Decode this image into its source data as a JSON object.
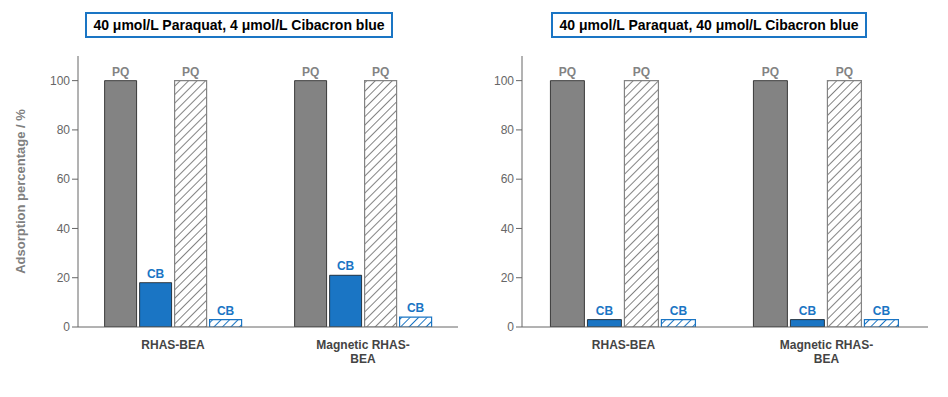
{
  "chart_data": [
    {
      "type": "bar",
      "title": "40 μmol/L Paraquat, 4 μmol/L Cibacron blue",
      "categories": [
        "RHAS-BEA",
        "Magnetic RHAS-\nBEA"
      ],
      "series": [
        {
          "name": "PQ",
          "color": "#838383",
          "values": [
            100,
            100
          ]
        },
        {
          "name": "CB",
          "color": "#1a75c4",
          "values": [
            18,
            21
          ]
        },
        {
          "name": "PQ",
          "color": "#838383",
          "values": [
            100,
            100
          ]
        },
        {
          "name": "CB",
          "color": "#1a75c4",
          "values": [
            3,
            4
          ]
        }
      ],
      "y_label": "Adsorption percentage / %",
      "ylim": [
        0,
        110
      ],
      "yticks": [
        0,
        20,
        40,
        60,
        80,
        100
      ],
      "grid": false
    },
    {
      "type": "bar",
      "title": "40 μmol/L Paraquat, 40 μmol/L Cibacron blue",
      "categories": [
        "RHAS-BEA",
        "Magnetic RHAS-\nBEA"
      ],
      "series": [
        {
          "name": "PQ",
          "color": "#838383",
          "values": [
            100,
            100
          ]
        },
        {
          "name": "CB",
          "color": "#1a75c4",
          "values": [
            3,
            3
          ]
        },
        {
          "name": "PQ",
          "color": "#838383",
          "values": [
            100,
            100
          ]
        },
        {
          "name": "CB",
          "color": "#1a75c4",
          "values": [
            3,
            3
          ]
        }
      ],
      "ylim": [
        0,
        110
      ],
      "yticks": [
        0,
        20,
        40,
        60,
        80,
        100
      ],
      "grid": false
    }
  ]
}
